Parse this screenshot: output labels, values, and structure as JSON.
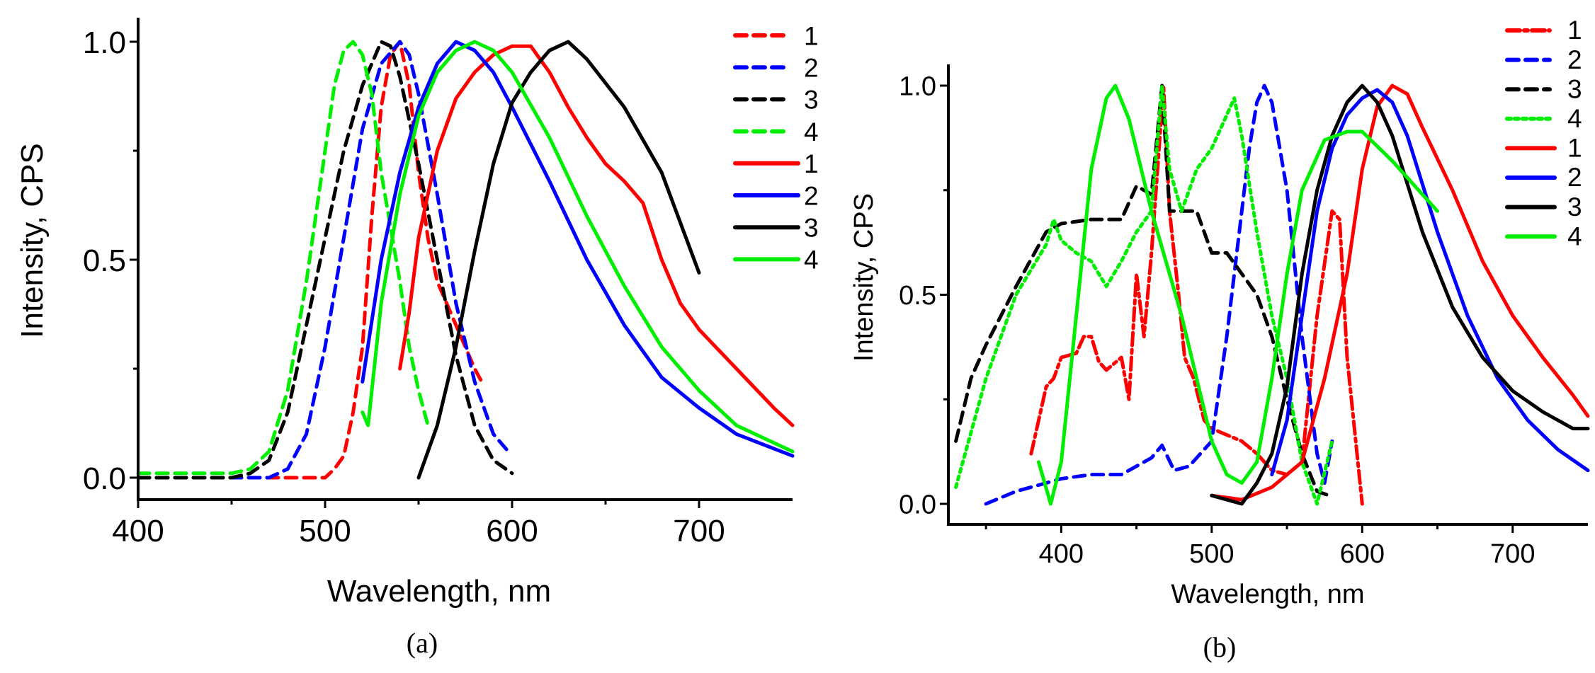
{
  "colors": {
    "red": "#ff0000",
    "blue": "#0000ff",
    "black": "#000000",
    "green": "#00ee00"
  },
  "chart_data": [
    {
      "type": "line",
      "panel_label": "(a)",
      "xlabel": "Wavelength, nm",
      "ylabel": "Intensity, CPS",
      "xlim": [
        400,
        750
      ],
      "ylim": [
        -0.05,
        1.05
      ],
      "xticks": [
        400,
        500,
        600,
        700
      ],
      "xtick_labels": [
        "400",
        "500",
        "600",
        "700"
      ],
      "xminor": [
        450,
        550,
        650
      ],
      "yticks": [
        0.0,
        0.5,
        1.0
      ],
      "ytick_labels": [
        "0.0",
        "0.5",
        "1.0"
      ],
      "yminor": [
        0.25,
        0.75
      ],
      "legend_position": "top-right",
      "series": [
        {
          "name": "1",
          "color": "red",
          "style": "dashed",
          "x": [
            400,
            450,
            500,
            505,
            510,
            515,
            520,
            525,
            530,
            535,
            540,
            545,
            550,
            555,
            560,
            570,
            580,
            585
          ],
          "y": [
            0,
            0,
            0,
            0.02,
            0.05,
            0.15,
            0.3,
            0.6,
            0.85,
            0.97,
            1.0,
            0.9,
            0.7,
            0.55,
            0.45,
            0.35,
            0.25,
            0.21
          ]
        },
        {
          "name": "2",
          "color": "blue",
          "style": "dashed",
          "x": [
            400,
            470,
            480,
            490,
            500,
            510,
            520,
            530,
            540,
            545,
            550,
            560,
            570,
            580,
            590,
            598
          ],
          "y": [
            0,
            0,
            0.02,
            0.1,
            0.3,
            0.55,
            0.8,
            0.95,
            1.0,
            0.97,
            0.88,
            0.65,
            0.4,
            0.22,
            0.1,
            0.06
          ]
        },
        {
          "name": "3",
          "color": "black",
          "style": "dashed",
          "x": [
            400,
            450,
            460,
            470,
            480,
            490,
            500,
            510,
            520,
            530,
            535,
            540,
            550,
            560,
            570,
            580,
            590,
            600
          ],
          "y": [
            0,
            0,
            0.01,
            0.04,
            0.15,
            0.35,
            0.55,
            0.75,
            0.9,
            1.0,
            0.99,
            0.92,
            0.72,
            0.5,
            0.28,
            0.12,
            0.04,
            0.01
          ]
        },
        {
          "name": "4",
          "color": "green",
          "style": "dashed",
          "x": [
            400,
            450,
            460,
            470,
            480,
            490,
            500,
            505,
            510,
            515,
            520,
            525,
            530,
            540,
            545,
            550,
            555
          ],
          "y": [
            0.01,
            0.01,
            0.02,
            0.06,
            0.2,
            0.45,
            0.75,
            0.9,
            0.98,
            1.0,
            0.97,
            0.88,
            0.7,
            0.45,
            0.3,
            0.2,
            0.12
          ]
        },
        {
          "name": "1",
          "color": "red",
          "style": "solid",
          "x": [
            540,
            545,
            550,
            560,
            570,
            580,
            590,
            600,
            610,
            620,
            630,
            640,
            650,
            660,
            670,
            680,
            690,
            700,
            720,
            740,
            750
          ],
          "y": [
            0.25,
            0.38,
            0.55,
            0.75,
            0.87,
            0.93,
            0.97,
            0.99,
            0.99,
            0.93,
            0.85,
            0.78,
            0.72,
            0.68,
            0.63,
            0.5,
            0.4,
            0.34,
            0.25,
            0.16,
            0.12
          ]
        },
        {
          "name": "2",
          "color": "blue",
          "style": "solid",
          "x": [
            520,
            530,
            540,
            550,
            560,
            570,
            580,
            590,
            600,
            620,
            640,
            660,
            680,
            700,
            720,
            750
          ],
          "y": [
            0.22,
            0.5,
            0.7,
            0.85,
            0.95,
            1.0,
            0.98,
            0.93,
            0.85,
            0.68,
            0.5,
            0.35,
            0.23,
            0.16,
            0.1,
            0.05
          ]
        },
        {
          "name": "3",
          "color": "black",
          "style": "solid",
          "x": [
            550,
            560,
            570,
            580,
            590,
            600,
            610,
            620,
            630,
            640,
            660,
            680,
            700
          ],
          "y": [
            0.0,
            0.12,
            0.3,
            0.52,
            0.72,
            0.86,
            0.93,
            0.98,
            1.0,
            0.96,
            0.85,
            0.7,
            0.47
          ]
        },
        {
          "name": "4",
          "color": "green",
          "style": "solid",
          "x": [
            520,
            523,
            530,
            540,
            550,
            560,
            570,
            580,
            590,
            600,
            620,
            640,
            660,
            680,
            700,
            720,
            750
          ],
          "y": [
            0.15,
            0.12,
            0.4,
            0.65,
            0.83,
            0.93,
            0.98,
            1.0,
            0.98,
            0.93,
            0.78,
            0.6,
            0.44,
            0.3,
            0.2,
            0.12,
            0.06
          ]
        }
      ]
    },
    {
      "type": "line",
      "panel_label": "(b)",
      "xlabel": "Wavelength, nm",
      "ylabel": "Intensity, CPS",
      "xlim": [
        325,
        750
      ],
      "ylim": [
        -0.1,
        1.1
      ],
      "xticks": [
        400,
        500,
        600,
        700
      ],
      "xtick_labels": [
        "400",
        "500",
        "600",
        "700"
      ],
      "xminor": [
        350,
        450,
        550,
        650
      ],
      "yticks": [
        0.0,
        0.5,
        1.0
      ],
      "ytick_labels": [
        "0.0",
        "0.5",
        "1.0"
      ],
      "yminor": [
        0.25,
        0.75
      ],
      "legend_position": "top-right",
      "series": [
        {
          "name": "1",
          "color": "red",
          "style": "dashdot",
          "x": [
            380,
            385,
            390,
            395,
            400,
            410,
            415,
            420,
            425,
            430,
            440,
            445,
            450,
            455,
            460,
            465,
            468,
            472,
            478,
            482,
            488,
            495,
            500,
            520,
            530,
            540,
            550,
            560,
            570,
            580,
            585,
            590,
            600
          ],
          "y": [
            0.12,
            0.2,
            0.28,
            0.3,
            0.35,
            0.36,
            0.4,
            0.4,
            0.34,
            0.32,
            0.35,
            0.25,
            0.55,
            0.4,
            0.6,
            0.85,
            1.0,
            0.7,
            0.5,
            0.35,
            0.3,
            0.2,
            0.18,
            0.15,
            0.12,
            0.08,
            0.07,
            0.1,
            0.45,
            0.7,
            0.68,
            0.35,
            0.0
          ]
        },
        {
          "name": "2",
          "color": "blue",
          "style": "dashed",
          "x": [
            350,
            370,
            390,
            400,
            420,
            440,
            460,
            467,
            475,
            485,
            500,
            510,
            520,
            525,
            530,
            535,
            540,
            550,
            560,
            570,
            575,
            580
          ],
          "y": [
            0,
            0.03,
            0.05,
            0.06,
            0.07,
            0.07,
            0.11,
            0.14,
            0.08,
            0.09,
            0.15,
            0.4,
            0.7,
            0.85,
            0.96,
            1.0,
            0.96,
            0.75,
            0.4,
            0.12,
            0.05,
            0.15
          ]
        },
        {
          "name": "3",
          "color": "black",
          "style": "dashed",
          "x": [
            330,
            340,
            350,
            370,
            390,
            400,
            420,
            440,
            450,
            460,
            467,
            472,
            490,
            500,
            510,
            520,
            530,
            540,
            550,
            560,
            570,
            578
          ],
          "y": [
            0.15,
            0.3,
            0.38,
            0.52,
            0.65,
            0.67,
            0.68,
            0.68,
            0.76,
            0.74,
            1.0,
            0.7,
            0.7,
            0.6,
            0.6,
            0.55,
            0.5,
            0.4,
            0.25,
            0.12,
            0.03,
            0.02
          ]
        },
        {
          "name": "4",
          "color": "green",
          "style": "dotted",
          "x": [
            330,
            350,
            370,
            390,
            395,
            400,
            410,
            420,
            430,
            440,
            450,
            460,
            467,
            472,
            480,
            490,
            500,
            510,
            515,
            520,
            530,
            540,
            550,
            560,
            570,
            580
          ],
          "y": [
            0.04,
            0.3,
            0.5,
            0.62,
            0.68,
            0.63,
            0.6,
            0.58,
            0.52,
            0.58,
            0.65,
            0.7,
            1.0,
            0.8,
            0.7,
            0.8,
            0.85,
            0.93,
            0.97,
            0.88,
            0.65,
            0.45,
            0.3,
            0.1,
            0.0,
            0.15
          ]
        },
        {
          "name": "1",
          "color": "red",
          "style": "solid",
          "x": [
            500,
            520,
            540,
            560,
            575,
            590,
            600,
            610,
            620,
            630,
            640,
            660,
            680,
            700,
            720,
            740,
            750
          ],
          "y": [
            0.02,
            0.01,
            0.04,
            0.1,
            0.3,
            0.55,
            0.8,
            0.95,
            1.0,
            0.98,
            0.9,
            0.75,
            0.58,
            0.45,
            0.35,
            0.26,
            0.21
          ]
        },
        {
          "name": "2",
          "color": "blue",
          "style": "solid",
          "x": [
            540,
            550,
            560,
            570,
            580,
            590,
            600,
            610,
            620,
            630,
            650,
            670,
            690,
            710,
            730,
            750
          ],
          "y": [
            0.07,
            0.2,
            0.45,
            0.7,
            0.85,
            0.93,
            0.97,
            0.99,
            0.96,
            0.88,
            0.65,
            0.45,
            0.3,
            0.2,
            0.13,
            0.08
          ]
        },
        {
          "name": "3",
          "color": "black",
          "style": "solid",
          "x": [
            500,
            510,
            520,
            530,
            540,
            550,
            560,
            570,
            580,
            590,
            600,
            610,
            620,
            640,
            660,
            680,
            700,
            720,
            740,
            750
          ],
          "y": [
            0.02,
            0.01,
            0.0,
            0.05,
            0.12,
            0.28,
            0.55,
            0.75,
            0.88,
            0.96,
            1.0,
            0.96,
            0.88,
            0.65,
            0.47,
            0.35,
            0.27,
            0.22,
            0.18,
            0.18
          ]
        },
        {
          "name": "4",
          "color": "green",
          "style": "solid",
          "x": [
            385,
            393,
            400,
            410,
            420,
            430,
            436,
            445,
            460,
            480,
            500,
            510,
            520,
            530,
            540,
            550,
            560,
            575,
            590,
            600,
            620,
            640,
            650
          ],
          "y": [
            0.1,
            0.0,
            0.1,
            0.45,
            0.8,
            0.97,
            1.0,
            0.92,
            0.7,
            0.45,
            0.15,
            0.07,
            0.05,
            0.1,
            0.3,
            0.55,
            0.75,
            0.87,
            0.89,
            0.89,
            0.82,
            0.74,
            0.7
          ]
        }
      ]
    }
  ]
}
